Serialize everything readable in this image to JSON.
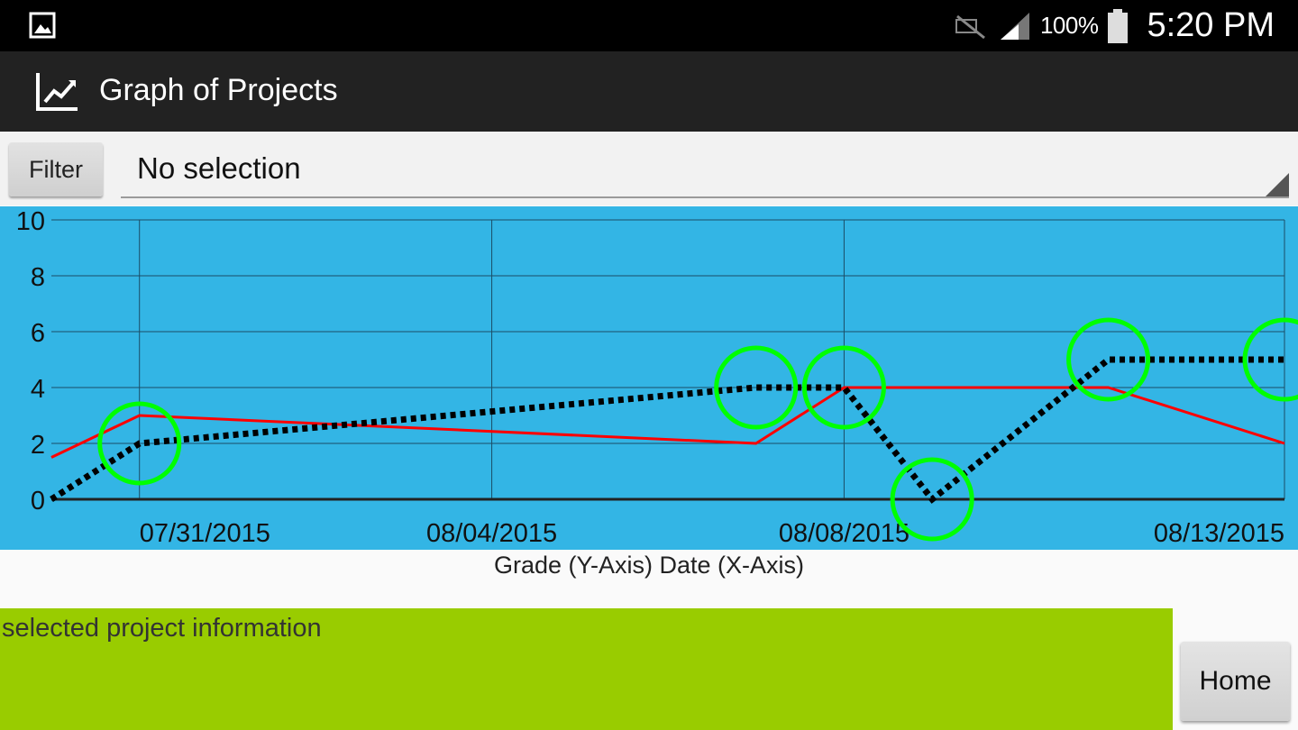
{
  "status_bar": {
    "battery_percent": "100%",
    "time": "5:20 PM",
    "icons": [
      "gallery-notification-icon",
      "mute-icon",
      "signal-icon",
      "battery-icon"
    ]
  },
  "action_bar": {
    "title": "Graph of Projects",
    "icon": "line-chart-icon",
    "background": "#222222"
  },
  "filter": {
    "button_label": "Filter",
    "selected_value": "No selection"
  },
  "chart_data": {
    "type": "line",
    "background": "#33b5e5",
    "ylim": [
      0,
      10
    ],
    "y_ticks": [
      "0",
      "2",
      "4",
      "6",
      "8",
      "10"
    ],
    "x_tick_labels": [
      "07/31/2015",
      "08/04/2015",
      "08/08/2015",
      "08/13/2015"
    ],
    "x_tick_dates": [
      "2015-07-31",
      "2015-08-04",
      "2015-08-08",
      "2015-08-13"
    ],
    "xlim": [
      "2015-07-30",
      "2015-08-13"
    ],
    "grid": true,
    "series": [
      {
        "style": "dotted",
        "color": "#000000",
        "points": [
          {
            "x": "2015-07-30",
            "y": 0
          },
          {
            "x": "2015-07-31",
            "y": 2
          },
          {
            "x": "2015-08-07",
            "y": 4
          },
          {
            "x": "2015-08-08",
            "y": 4
          },
          {
            "x": "2015-08-09",
            "y": 0
          },
          {
            "x": "2015-08-11",
            "y": 5
          },
          {
            "x": "2015-08-13",
            "y": 5
          }
        ]
      },
      {
        "style": "solid",
        "color": "#ff0000",
        "points": [
          {
            "x": "2015-07-30",
            "y": 1.5
          },
          {
            "x": "2015-07-31",
            "y": 3
          },
          {
            "x": "2015-08-07",
            "y": 2
          },
          {
            "x": "2015-08-08",
            "y": 4
          },
          {
            "x": "2015-08-11",
            "y": 4
          },
          {
            "x": "2015-08-13",
            "y": 2
          }
        ]
      }
    ],
    "highlight_color": "#00ff00",
    "highlights": [
      {
        "x": "2015-07-31",
        "y": 2
      },
      {
        "x": "2015-08-07",
        "y": 4
      },
      {
        "x": "2015-08-08",
        "y": 4
      },
      {
        "x": "2015-08-09",
        "y": 0
      },
      {
        "x": "2015-08-11",
        "y": 5
      },
      {
        "x": "2015-08-13",
        "y": 5
      }
    ]
  },
  "chart_caption": "Grade (Y-Axis) Date (X-Axis)",
  "info_panel": {
    "text": "selected project information",
    "background": "#99cc00"
  },
  "home_button": {
    "label": "Home"
  }
}
